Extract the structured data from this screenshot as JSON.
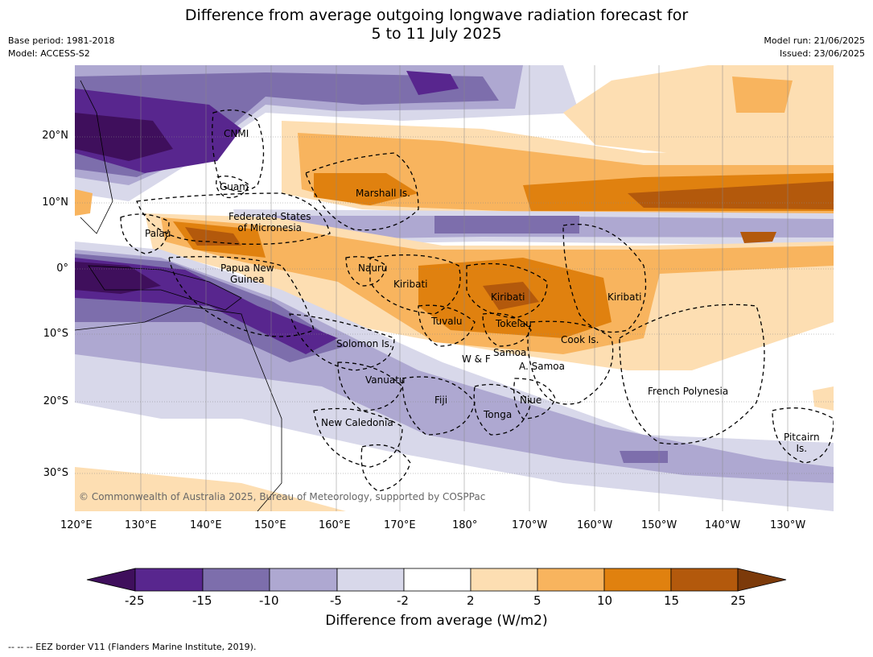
{
  "title_line1": "Difference from average outgoing longwave radiation forecast for",
  "title_line2": "5 to 11 July 2025",
  "meta_left": [
    "Base period: 1981-2018",
    "Model: ACCESS-S2"
  ],
  "meta_right": [
    "Model run: 21/06/2025",
    "Issued: 23/06/2025"
  ],
  "lat_labels": [
    "20°N",
    "10°N",
    "0°",
    "10°S",
    "20°S",
    "30°S"
  ],
  "lon_labels": [
    "120°E",
    "130°E",
    "140°E",
    "150°E",
    "160°E",
    "170°E",
    "180°",
    "170°W",
    "160°W",
    "150°W",
    "140°W",
    "130°W"
  ],
  "places": [
    {
      "name": "CNMI"
    },
    {
      "name": "Guam"
    },
    {
      "name": "Marshall Is."
    },
    {
      "name": "Federated States of Micronesia",
      "line1": "Federated States",
      "line2": "of Micronesia"
    },
    {
      "name": "Palau"
    },
    {
      "name": "Nauru"
    },
    {
      "name": "Papua New Guinea",
      "line1": "Papua New",
      "line2": "Guinea"
    },
    {
      "name": "Kiribati (Gilbert)",
      "label": "Kiribati"
    },
    {
      "name": "Kiribati (Phoenix)",
      "label": "Kiribati"
    },
    {
      "name": "Kiribati (Line)",
      "label": "Kiribati"
    },
    {
      "name": "Tuvalu"
    },
    {
      "name": "Tokelau"
    },
    {
      "name": "Cook Is."
    },
    {
      "name": "Solomon Is."
    },
    {
      "name": "W & F"
    },
    {
      "name": "Samoa"
    },
    {
      "name": "A. Samoa"
    },
    {
      "name": "Vanuatu"
    },
    {
      "name": "Fiji"
    },
    {
      "name": "Niue"
    },
    {
      "name": "French Polynesia"
    },
    {
      "name": "Tonga"
    },
    {
      "name": "New Caledonia"
    },
    {
      "name": "Pitcairn Is.",
      "line1": "Pitcairn",
      "line2": "Is."
    }
  ],
  "copyright": "© Commonwealth of Australia 2025, Bureau of Meteorology, supported by COSPPac",
  "colorbar": {
    "ticks": [
      "-25",
      "-15",
      "-10",
      "-5",
      "-2",
      "2",
      "5",
      "10",
      "15",
      "25"
    ],
    "colors": [
      "#3f0f5c",
      "#58268e",
      "#7d6eac",
      "#aea8d1",
      "#d8d8ea",
      "#ffffff",
      "#fddeb2",
      "#f8b45e",
      "#e0810f",
      "#b3590c",
      "#7c3a0a"
    ],
    "label": "Difference from average (W/m2)"
  },
  "footnote": "--  --  -- EEZ border V11 (Flanders Marine Institute, 2019)."
}
